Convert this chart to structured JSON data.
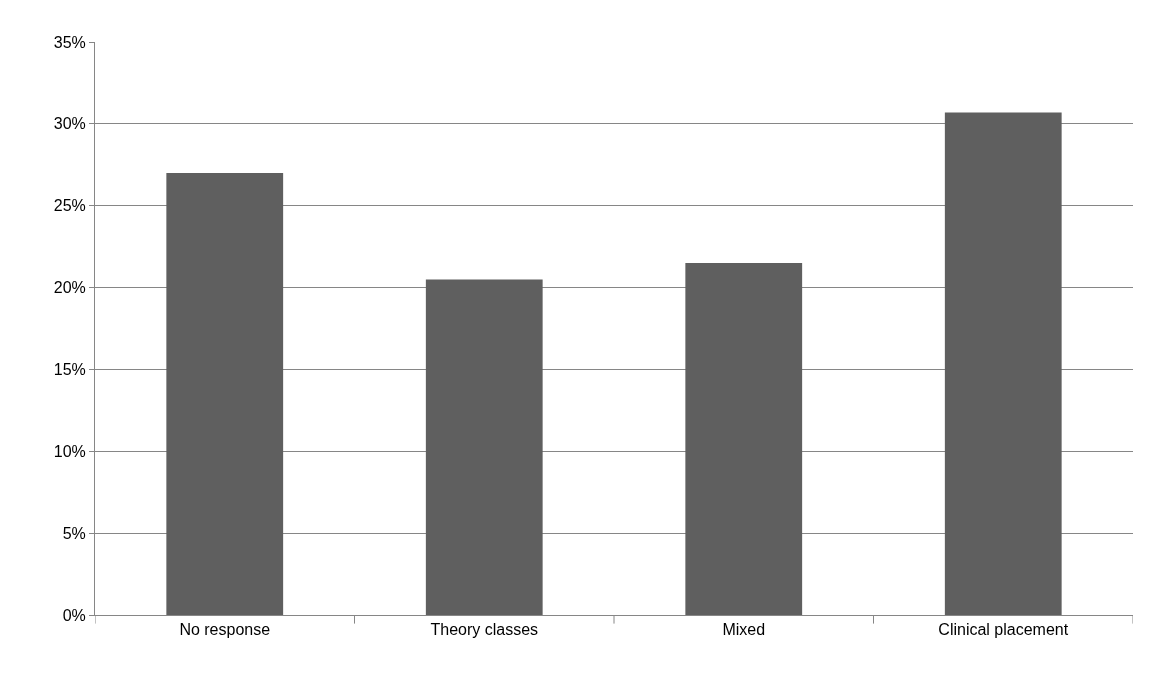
{
  "chart_data": {
    "type": "bar",
    "categories": [
      "No response",
      "Theory classes",
      "Mixed",
      "Clinical placement"
    ],
    "values": [
      27.0,
      20.5,
      21.5,
      30.7
    ],
    "color": "#5f5f5f",
    "ylim": [
      0,
      35
    ],
    "yticks": [
      {
        "value": 0,
        "label": "0%"
      },
      {
        "value": 5,
        "label": "5%"
      },
      {
        "value": 10,
        "label": "10%"
      },
      {
        "value": 15,
        "label": "15%"
      },
      {
        "value": 20,
        "label": "20%"
      },
      {
        "value": 25,
        "label": "25%"
      },
      {
        "value": 30,
        "label": "30%"
      },
      {
        "value": 35,
        "label": "35%"
      }
    ],
    "grid": "y"
  }
}
